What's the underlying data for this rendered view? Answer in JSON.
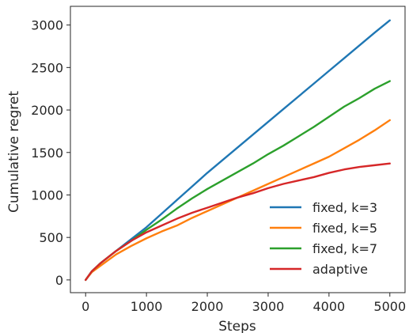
{
  "chart_data": {
    "type": "line",
    "title": "",
    "xlabel": "Steps",
    "ylabel": "Cumulative regret",
    "xlim": [
      -250,
      5250
    ],
    "ylim": [
      -150,
      3220
    ],
    "xticks": [
      0,
      1000,
      2000,
      3000,
      4000,
      5000
    ],
    "yticks": [
      0,
      500,
      1000,
      1500,
      2000,
      2500,
      3000
    ],
    "grid": false,
    "legend_position": "lower right",
    "series": [
      {
        "name": "fixed, k=3",
        "color": "#1f77b4",
        "x": [
          0,
          100,
          250,
          500,
          750,
          1000,
          1250,
          1500,
          1750,
          2000,
          2250,
          2500,
          2750,
          3000,
          3250,
          3500,
          3750,
          4000,
          4250,
          4500,
          4750,
          5000
        ],
        "y": [
          0,
          100,
          200,
          340,
          480,
          620,
          780,
          940,
          1100,
          1260,
          1410,
          1560,
          1710,
          1860,
          2010,
          2160,
          2310,
          2460,
          2610,
          2760,
          2910,
          3055
        ]
      },
      {
        "name": "fixed, k=5",
        "color": "#ff7f0e",
        "x": [
          0,
          100,
          250,
          500,
          750,
          1000,
          1250,
          1500,
          1750,
          2000,
          2250,
          2500,
          2750,
          3000,
          3250,
          3500,
          3750,
          4000,
          4250,
          4500,
          4750,
          5000
        ],
        "y": [
          0,
          90,
          170,
          300,
          400,
          490,
          570,
          640,
          730,
          810,
          890,
          970,
          1050,
          1130,
          1210,
          1290,
          1370,
          1450,
          1550,
          1650,
          1760,
          1880
        ]
      },
      {
        "name": "fixed, k=7",
        "color": "#2ca02c",
        "x": [
          0,
          100,
          250,
          500,
          750,
          1000,
          1250,
          1500,
          1750,
          2000,
          2250,
          2500,
          2750,
          3000,
          3250,
          3500,
          3750,
          4000,
          4250,
          4500,
          4750,
          5000
        ],
        "y": [
          0,
          100,
          200,
          340,
          460,
          590,
          710,
          840,
          960,
          1070,
          1170,
          1270,
          1370,
          1480,
          1580,
          1690,
          1800,
          1920,
          2040,
          2140,
          2250,
          2340
        ]
      },
      {
        "name": "adaptive",
        "color": "#d62728",
        "x": [
          0,
          100,
          250,
          500,
          750,
          1000,
          1250,
          1500,
          1750,
          2000,
          2250,
          2500,
          2750,
          3000,
          3250,
          3500,
          3750,
          4000,
          4250,
          4500,
          4750,
          5000
        ],
        "y": [
          0,
          100,
          200,
          340,
          460,
          560,
          640,
          720,
          790,
          850,
          910,
          970,
          1020,
          1080,
          1130,
          1170,
          1210,
          1260,
          1300,
          1330,
          1350,
          1370
        ]
      }
    ]
  }
}
